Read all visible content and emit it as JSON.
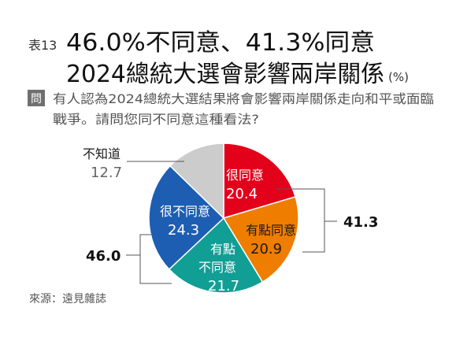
{
  "header": {
    "table_no": "表13",
    "headline": "46.0%不同意、41.3%同意",
    "subtitle": "2024總統大選會影響兩岸關係",
    "unit": "(%)"
  },
  "question": {
    "tag": "問",
    "line1": "有人認為2024總統大選結果將會影響兩岸關係走向和平或面臨",
    "line2": "戰爭。請問您同不同意這種看法?"
  },
  "source": "來源：遠見雜誌",
  "chart_data": {
    "type": "pie",
    "title": "2024總統大選會影響兩岸關係",
    "unit": "%",
    "slices": [
      {
        "label": "很同意",
        "value": 20.4,
        "color": "#e3001b",
        "text_color": "#ffffff"
      },
      {
        "label": "有點同意",
        "value": 20.9,
        "color": "#ef7d00",
        "text_color": "#1a1a1a"
      },
      {
        "label": "有點不同意",
        "label_lines": [
          "有點",
          "不同意"
        ],
        "value": 21.7,
        "color": "#119e95",
        "text_color": "#ffffff"
      },
      {
        "label": "很不同意",
        "value": 24.3,
        "color": "#1d5eb3",
        "text_color": "#ffffff"
      },
      {
        "label": "不知道",
        "value": 12.7,
        "color": "#cccccc",
        "text_color": "#555555"
      }
    ],
    "groups": [
      {
        "label": "同意",
        "total": "41.3"
      },
      {
        "label": "不同意",
        "total": "46.0"
      }
    ]
  }
}
